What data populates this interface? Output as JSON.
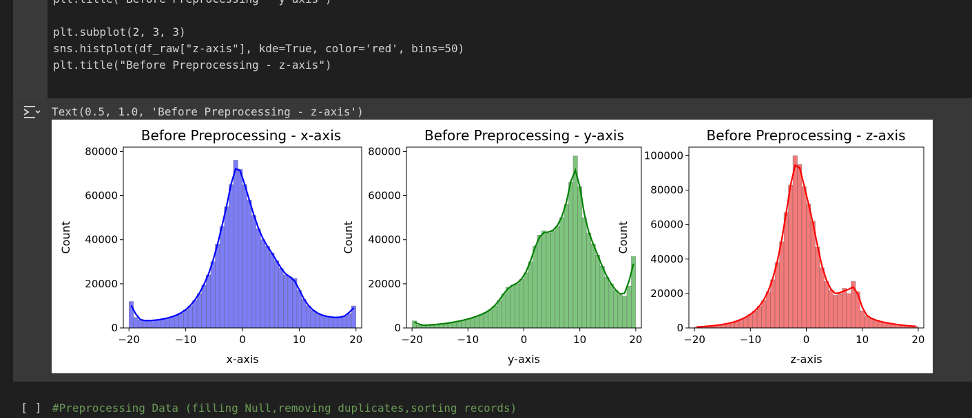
{
  "code": {
    "line0": "plt.title(\"Before Preprocessing - y-axis\")",
    "line1": "plt.subplot(2, 3, 3)",
    "line2": "sns.histplot(df_raw[\"z-axis\"], kde=True, color='red', bins=50)",
    "line3": "plt.title(\"Before Preprocessing - z-axis\")"
  },
  "output": {
    "text": "Text(0.5, 1.0, 'Before Preprocessing - z-axis')"
  },
  "next_cell": {
    "bracket": "[ ]",
    "code": "#Preprocessing Data (filling Null,removing duplicates,sorting records)"
  },
  "chart_data": [
    {
      "type": "bar",
      "title": "Before Preprocessing - x-axis",
      "xlabel": "x-axis",
      "ylabel": "Count",
      "xlim": [
        -21,
        21
      ],
      "ylim": [
        0,
        82000
      ],
      "xticks": [
        -20,
        -10,
        0,
        10,
        20
      ],
      "yticks": [
        0,
        20000,
        40000,
        60000,
        80000
      ],
      "xtick_labels": [
        "−20",
        "−10",
        "0",
        "10",
        "20"
      ],
      "ytick_labels": [
        "0",
        "20000",
        "40000",
        "60000",
        "80000"
      ],
      "bar_color": "#7d7df5",
      "line_color": "#0000ff",
      "bin_start": -20,
      "bin_width": 0.8,
      "values": [
        12000,
        4800,
        3600,
        3200,
        3300,
        3500,
        3700,
        4000,
        4500,
        5000,
        5800,
        6800,
        8200,
        10000,
        12500,
        15500,
        19500,
        24000,
        30000,
        38000,
        46000,
        55000,
        65000,
        76000,
        72000,
        65000,
        58000,
        51000,
        45000,
        40000,
        37000,
        34000,
        30500,
        27000,
        24000,
        23000,
        22500,
        17000,
        13000,
        10000,
        8000,
        6700,
        5800,
        5200,
        4900,
        4700,
        4800,
        5200,
        6500,
        10000
      ]
    },
    {
      "type": "bar",
      "title": "Before Preprocessing - y-axis",
      "xlabel": "y-axis",
      "ylabel": "Count",
      "xlim": [
        -21,
        21
      ],
      "ylim": [
        0,
        82000
      ],
      "xticks": [
        -20,
        -10,
        0,
        10,
        20
      ],
      "yticks": [
        0,
        20000,
        40000,
        60000,
        80000
      ],
      "xtick_labels": [
        "−20",
        "−10",
        "0",
        "10",
        "20"
      ],
      "ytick_labels": [
        "0",
        "20000",
        "40000",
        "60000",
        "80000"
      ],
      "bar_color": "#7ec47e",
      "line_color": "#008000",
      "bin_start": -20,
      "bin_width": 0.8,
      "values": [
        3200,
        1200,
        1200,
        1300,
        1400,
        1600,
        1800,
        2000,
        2300,
        2700,
        3100,
        3500,
        4000,
        4600,
        5300,
        6100,
        7000,
        8200,
        10000,
        12500,
        15500,
        18500,
        19500,
        20000,
        22000,
        25000,
        30000,
        37000,
        42000,
        44000,
        43000,
        44000,
        46000,
        50000,
        56000,
        66000,
        78000,
        64000,
        50000,
        43000,
        38000,
        33000,
        28000,
        23000,
        20000,
        17000,
        15000,
        14500,
        19000,
        32500
      ]
    },
    {
      "type": "bar",
      "title": "Before Preprocessing - z-axis",
      "xlabel": "z-axis",
      "ylabel": "Count",
      "xlim": [
        -21,
        21
      ],
      "ylim": [
        0,
        105000
      ],
      "xticks": [
        -20,
        -10,
        0,
        10,
        20
      ],
      "yticks": [
        0,
        20000,
        40000,
        60000,
        80000,
        100000
      ],
      "xtick_labels": [
        "−20",
        "−10",
        "0",
        "10",
        "20"
      ],
      "ytick_labels": [
        "0",
        "20000",
        "40000",
        "60000",
        "80000",
        "100000"
      ],
      "bar_color": "#f27a7a",
      "line_color": "#ff0000",
      "bin_start": -20,
      "bin_width": 0.8,
      "values": [
        500,
        700,
        900,
        1100,
        1400,
        1700,
        2100,
        2600,
        3200,
        4000,
        5000,
        6200,
        7800,
        9800,
        12500,
        16000,
        21000,
        28000,
        38000,
        50000,
        67000,
        83000,
        100000,
        95000,
        82000,
        72000,
        62000,
        47000,
        35000,
        27000,
        22000,
        19000,
        20000,
        23000,
        20000,
        27000,
        21000,
        10000,
        7000,
        5500,
        4500,
        3800,
        3200,
        2700,
        2300,
        1900,
        1600,
        1300,
        1100,
        900
      ]
    }
  ]
}
